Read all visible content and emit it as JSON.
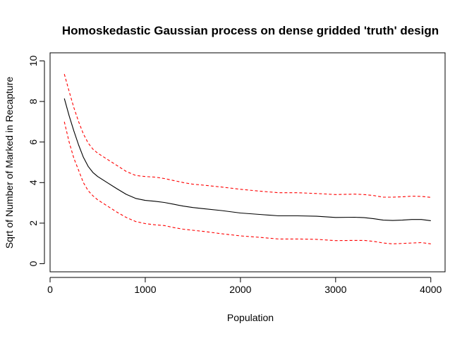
{
  "chart_data": {
    "type": "line",
    "title": "Homoskedastic Gaussian process on dense gridded 'truth' design",
    "xlabel": "Population",
    "ylabel": "Sqrt of Number of Marked in Recapture",
    "xlim": [
      0,
      4150
    ],
    "ylim": [
      -0.4,
      10.4
    ],
    "xticks": [
      0,
      1000,
      2000,
      3000,
      4000
    ],
    "yticks": [
      0,
      2,
      4,
      6,
      8,
      10
    ],
    "grid": false,
    "legend": "none",
    "series": [
      {
        "style": "solid",
        "color": "#000000",
        "x": [
          150,
          200,
          250,
          300,
          350,
          400,
          450,
          500,
          600,
          700,
          800,
          900,
          1000,
          1100,
          1200,
          1300,
          1400,
          1500,
          1600,
          1800,
          2000,
          2200,
          2400,
          2600,
          2800,
          3000,
          3200,
          3300,
          3400,
          3500,
          3600,
          3700,
          3800,
          3900,
          4000
        ],
        "y": [
          8.15,
          7.3,
          6.55,
          5.85,
          5.25,
          4.8,
          4.5,
          4.3,
          4.0,
          3.7,
          3.42,
          3.22,
          3.12,
          3.08,
          3.02,
          2.93,
          2.84,
          2.77,
          2.72,
          2.62,
          2.5,
          2.43,
          2.36,
          2.36,
          2.34,
          2.28,
          2.29,
          2.27,
          2.22,
          2.15,
          2.13,
          2.15,
          2.18,
          2.18,
          2.12
        ]
      },
      {
        "style": "dashed",
        "color": "#ff0000",
        "x": [
          150,
          200,
          250,
          300,
          350,
          400,
          450,
          500,
          600,
          700,
          800,
          900,
          1000,
          1100,
          1200,
          1300,
          1400,
          1500,
          1600,
          1800,
          2000,
          2200,
          2400,
          2600,
          2800,
          3000,
          3200,
          3300,
          3400,
          3500,
          3600,
          3700,
          3800,
          3900,
          4000
        ],
        "y": [
          9.35,
          8.5,
          7.7,
          7.0,
          6.4,
          5.95,
          5.65,
          5.45,
          5.15,
          4.85,
          4.55,
          4.35,
          4.3,
          4.27,
          4.2,
          4.1,
          4.0,
          3.92,
          3.88,
          3.78,
          3.67,
          3.58,
          3.5,
          3.5,
          3.46,
          3.41,
          3.43,
          3.41,
          3.36,
          3.28,
          3.28,
          3.3,
          3.33,
          3.32,
          3.27
        ]
      },
      {
        "style": "dashed",
        "color": "#ff0000",
        "x": [
          150,
          200,
          250,
          300,
          350,
          400,
          450,
          500,
          600,
          700,
          800,
          900,
          1000,
          1100,
          1200,
          1300,
          1400,
          1500,
          1600,
          1800,
          2000,
          2200,
          2400,
          2600,
          2800,
          3000,
          3200,
          3300,
          3400,
          3500,
          3600,
          3700,
          3800,
          3900,
          4000
        ],
        "y": [
          7.0,
          6.0,
          5.2,
          4.6,
          4.0,
          3.6,
          3.35,
          3.15,
          2.85,
          2.55,
          2.28,
          2.08,
          1.98,
          1.92,
          1.88,
          1.78,
          1.7,
          1.65,
          1.6,
          1.48,
          1.37,
          1.3,
          1.22,
          1.22,
          1.2,
          1.14,
          1.15,
          1.15,
          1.1,
          1.02,
          0.98,
          1.0,
          1.02,
          1.04,
          0.98
        ]
      }
    ]
  }
}
